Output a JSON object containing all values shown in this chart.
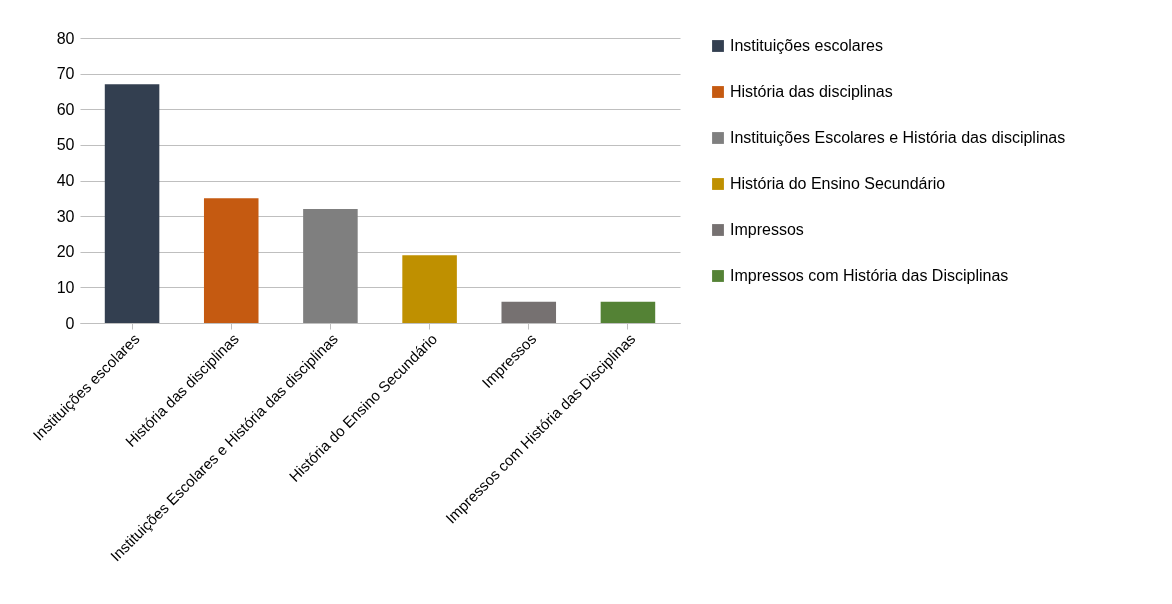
{
  "chart_data": {
    "type": "bar",
    "stacked": true,
    "categories": [
      "Instituições escolares",
      "História das disciplinas",
      "Instituições Escolares e História das disciplinas",
      "História do Ensino Secundário",
      "Impressos",
      "Impressos com História das Disciplinas"
    ],
    "series": [
      {
        "name": "Instituições escolares",
        "color": "#333f50",
        "values": [
          67,
          null,
          null,
          null,
          null,
          null
        ]
      },
      {
        "name": "História das disciplinas",
        "color": "#c55a11",
        "values": [
          null,
          35,
          null,
          null,
          null,
          null
        ]
      },
      {
        "name": "Instituições Escolares e História das disciplinas",
        "color": "#7f7f7f",
        "values": [
          null,
          null,
          32,
          null,
          null,
          null
        ]
      },
      {
        "name": "História do Ensino Secundário",
        "color": "#bf9000",
        "values": [
          null,
          null,
          null,
          19,
          null,
          null
        ]
      },
      {
        "name": "Impressos",
        "color": "#767171",
        "values": [
          null,
          null,
          null,
          null,
          6,
          null
        ]
      },
      {
        "name": "Impressos com História das Disciplinas",
        "color": "#548235",
        "values": [
          null,
          null,
          null,
          null,
          null,
          6
        ]
      }
    ],
    "ylim": [
      0,
      80
    ],
    "yticks": [
      0,
      10,
      20,
      30,
      40,
      50,
      60,
      70,
      80
    ],
    "grid": "y",
    "legend": "right"
  }
}
